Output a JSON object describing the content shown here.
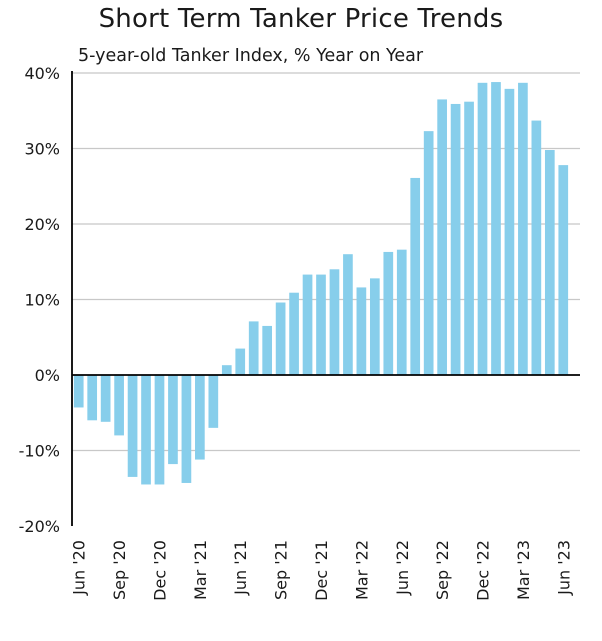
{
  "chart_data": {
    "type": "bar",
    "title": "Short Term Tanker Price Trends",
    "subtitle": "5-year-old Tanker Index, % Year on Year",
    "xlabel": "",
    "ylabel": "",
    "ylim": [
      -20,
      40
    ],
    "yticks": [
      -20,
      -10,
      0,
      10,
      20,
      30,
      40
    ],
    "ytick_labels": [
      "-20%",
      "-10%",
      "0%",
      "10%",
      "20%",
      "30%",
      "40%"
    ],
    "grid": true,
    "color": "#87CEEB",
    "categories": [
      "Jun '20",
      "Jul '20",
      "Aug '20",
      "Sep '20",
      "Oct '20",
      "Nov '20",
      "Dec '20",
      "Jan '21",
      "Feb '21",
      "Mar '21",
      "Apr '21",
      "May '21",
      "Jun '21",
      "Jul '21",
      "Aug '21",
      "Sep '21",
      "Oct '21",
      "Nov '21",
      "Dec '21",
      "Jan '22",
      "Feb '22",
      "Mar '22",
      "Apr '22",
      "May '22",
      "Jun '22",
      "Jul '22",
      "Aug '22",
      "Sep '22",
      "Oct '22",
      "Nov '22",
      "Dec '22",
      "Jan '23",
      "Feb '23",
      "Mar '23",
      "Apr '23",
      "May '23",
      "Jun '23"
    ],
    "values": [
      -4.3,
      -6.0,
      -6.2,
      -8.0,
      -13.5,
      -14.5,
      -14.5,
      -11.8,
      -14.3,
      -11.2,
      -7.0,
      1.3,
      3.5,
      7.1,
      6.5,
      9.6,
      10.9,
      13.3,
      13.3,
      14.0,
      16.0,
      11.6,
      12.8,
      16.3,
      16.6,
      26.1,
      32.3,
      36.5,
      35.9,
      36.2,
      38.7,
      38.8,
      37.9,
      38.7,
      33.7,
      29.8,
      27.8
    ],
    "x_tick_labels": [
      "Jun '20",
      "Sep '20",
      "Dec '20",
      "Mar '21",
      "Jun '21",
      "Sep '21",
      "Dec '21",
      "Mar '22",
      "Jun '22",
      "Sep '22",
      "Dec '22",
      "Mar '23",
      "Jun '23"
    ]
  }
}
